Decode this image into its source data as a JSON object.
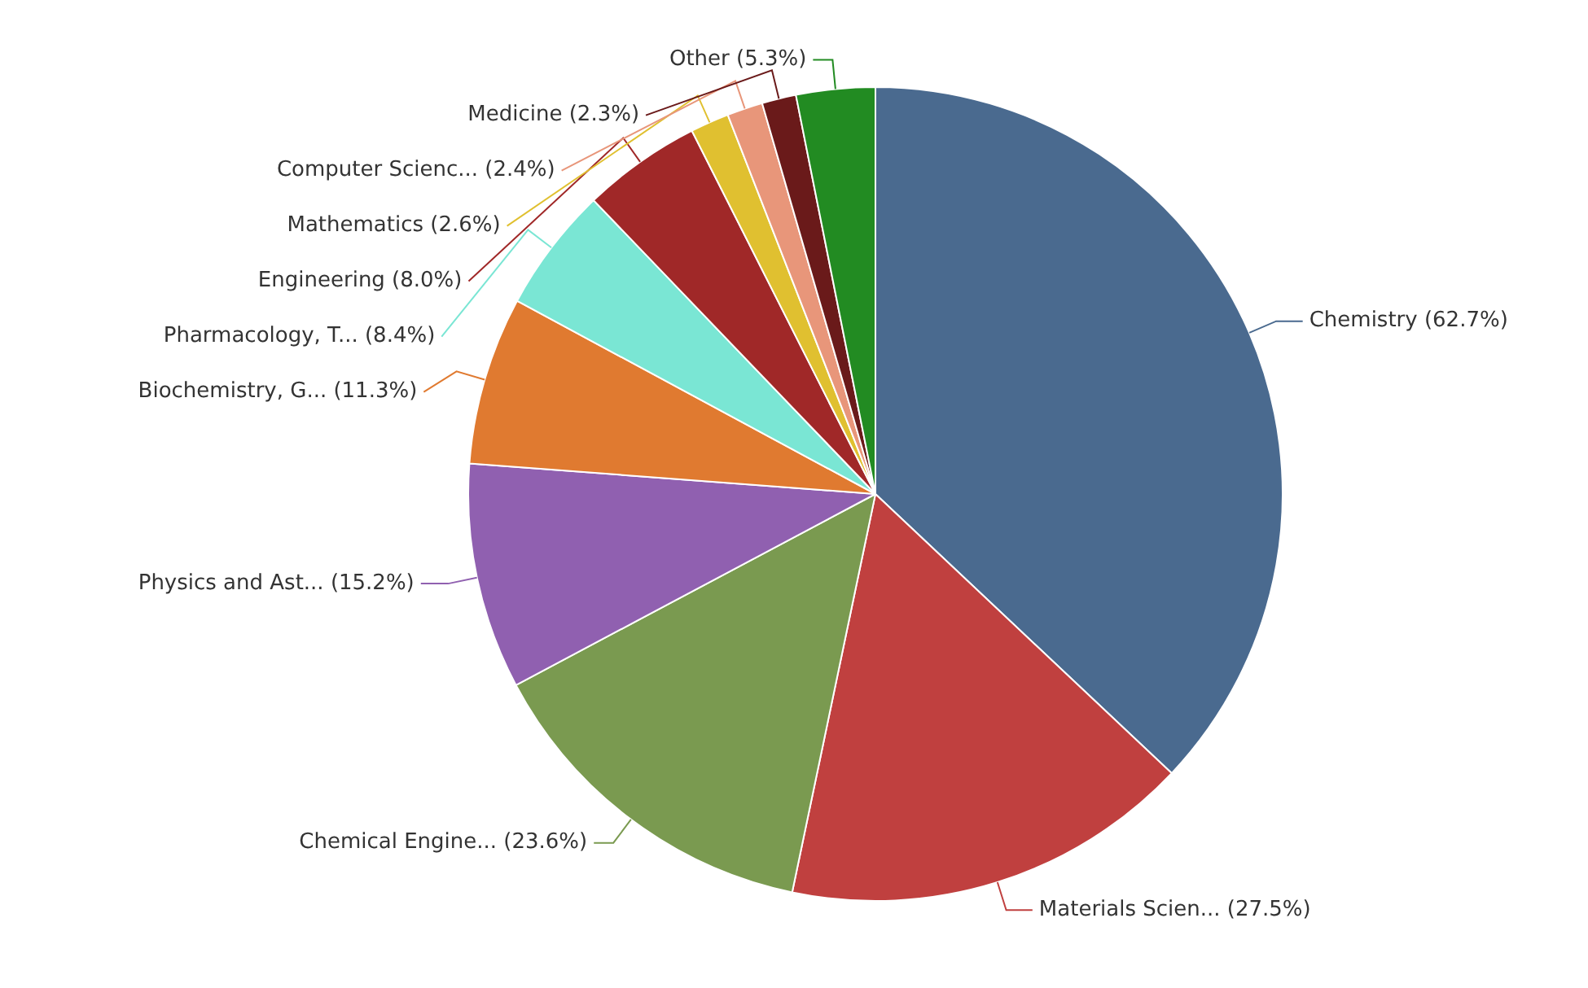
{
  "chart_data": {
    "type": "pie",
    "categories": [
      "Chemistry",
      "Materials Scien...",
      "Chemical Engine...",
      "Physics and Ast...",
      "Biochemistry, G...",
      "Pharmacology, T...",
      "Engineering",
      "Mathematics",
      "Computer Scienc...",
      "Medicine",
      "Other"
    ],
    "values": [
      62.7,
      27.5,
      23.6,
      15.2,
      11.3,
      8.4,
      8.0,
      2.6,
      2.4,
      2.3,
      5.3
    ],
    "value_labels": [
      "(62.7%)",
      "(27.5%)",
      "(23.6%)",
      "(15.2%)",
      "(11.3%)",
      "(8.4%)",
      "(8.0%)",
      "(2.6%)",
      "(2.4%)",
      "(2.3%)",
      "(5.3%)"
    ],
    "colors": [
      "#4a6a8f",
      "#c0403f",
      "#7a9a50",
      "#9060b0",
      "#e07a30",
      "#7ae6d4",
      "#a02828",
      "#e0c030",
      "#e8967a",
      "#6a1a1a",
      "#228b22"
    ],
    "legend": false
  }
}
